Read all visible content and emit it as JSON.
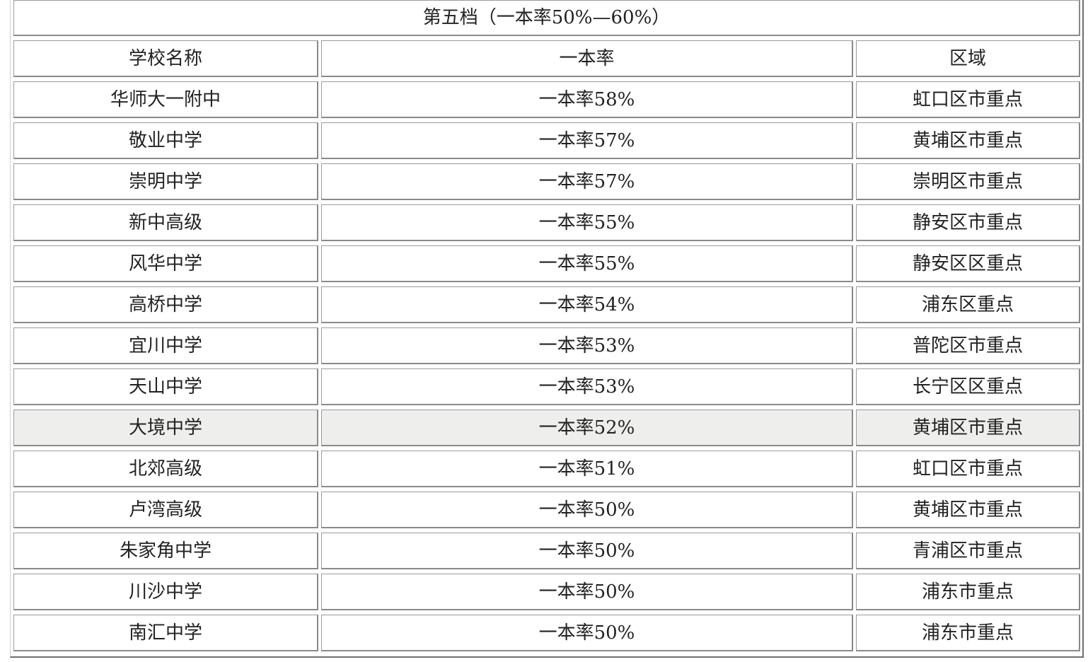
{
  "table": {
    "title": "第五档（一本率50%—60%）",
    "headers": [
      "学校名称",
      "一本率",
      "区域"
    ],
    "rows": [
      {
        "school": "华师大一附中",
        "rate": "一本率58%",
        "district": "虹口区市重点"
      },
      {
        "school": "敬业中学",
        "rate": "一本率57%",
        "district": "黄埔区市重点"
      },
      {
        "school": "崇明中学",
        "rate": "一本率57%",
        "district": "崇明区市重点"
      },
      {
        "school": "新中高级",
        "rate": "一本率55%",
        "district": "静安区市重点"
      },
      {
        "school": "风华中学",
        "rate": "一本率55%",
        "district": "静安区区重点"
      },
      {
        "school": "高桥中学",
        "rate": "一本率54%",
        "district": "浦东区重点"
      },
      {
        "school": "宜川中学",
        "rate": "一本率53%",
        "district": "普陀区市重点"
      },
      {
        "school": "天山中学",
        "rate": "一本率53%",
        "district": "长宁区区重点"
      },
      {
        "school": "大境中学",
        "rate": "一本率52%",
        "district": "黄埔区市重点"
      },
      {
        "school": "北郊高级",
        "rate": "一本率51%",
        "district": "虹口区市重点"
      },
      {
        "school": "卢湾高级",
        "rate": "一本率50%",
        "district": "黄埔区市重点"
      },
      {
        "school": "朱家角中学",
        "rate": "一本率50%",
        "district": "青浦区市重点"
      },
      {
        "school": "川沙中学",
        "rate": "一本率50%",
        "district": "浦东市重点"
      },
      {
        "school": "南汇中学",
        "rate": "一本率50%",
        "district": "浦东市重点"
      }
    ]
  }
}
